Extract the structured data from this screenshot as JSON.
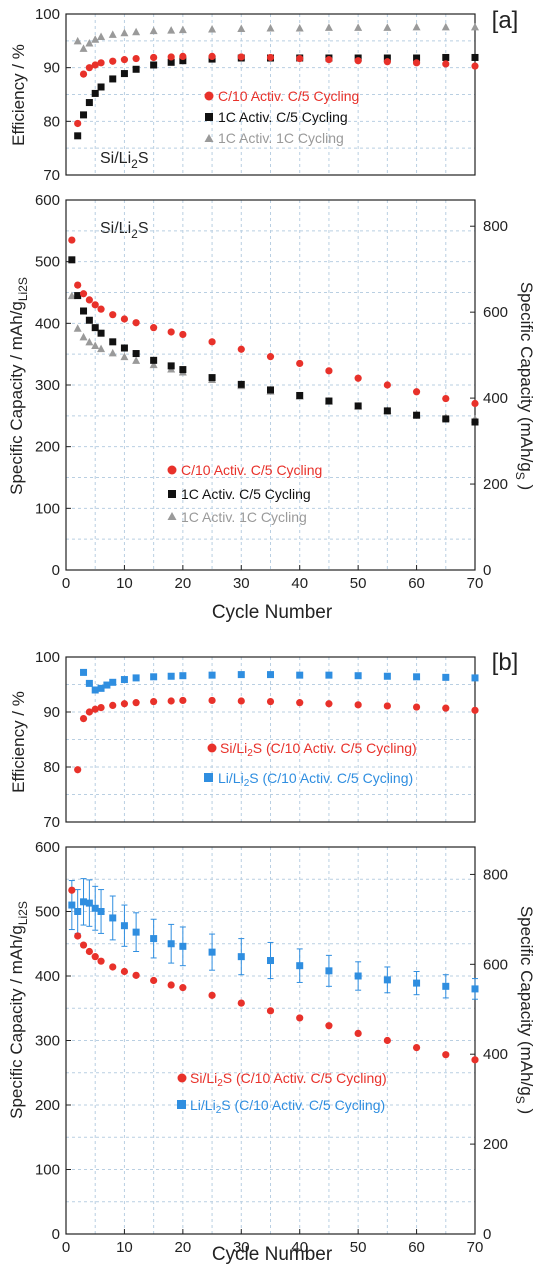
{
  "panels": [
    {
      "tag": "[a]",
      "sample": "Si/Li2S",
      "efficiency_ylabel": "Efficiency / %",
      "capacity_ylabel": "Specific Capacity / mAh/gLi2S",
      "capacity_y2label": "Specific Capacity (mAh/gS )",
      "xlabel": "Cycle Number"
    },
    {
      "tag": "[b]",
      "efficiency_ylabel": "Efficiency / %",
      "capacity_ylabel": "Specific Capacity / mAh/gLi2S",
      "capacity_y2label": "Specific Capacity (mAh/gS )",
      "xlabel": "Cycle Number"
    }
  ],
  "colors": {
    "red": "#e8312a",
    "black": "#111111",
    "gray": "#9a9a9a",
    "blue": "#2f8ee0",
    "grid": "#b9cfe2"
  },
  "chart_data": [
    {
      "id": "a-efficiency",
      "type": "scatter",
      "xlim": [
        0,
        70
      ],
      "ylim": [
        70,
        100
      ],
      "yticks": [
        70,
        80,
        90,
        100
      ],
      "grid": true,
      "legend_position": "center-right",
      "series": [
        {
          "name": "C/10 Activ. C/5 Cycling",
          "marker": "circle",
          "color": "#e8312a",
          "x": [
            2,
            3,
            4,
            5,
            6,
            8,
            10,
            12,
            15,
            18,
            20,
            25,
            30,
            35,
            40,
            45,
            50,
            55,
            60,
            65,
            70
          ],
          "y": [
            79.6,
            88.8,
            90.0,
            90.5,
            90.9,
            91.2,
            91.5,
            91.7,
            91.9,
            92.0,
            92.1,
            92.1,
            92.0,
            91.9,
            91.7,
            91.5,
            91.3,
            91.1,
            90.9,
            90.7,
            90.3
          ]
        },
        {
          "name": "1C Activ. C/5 Cycling",
          "marker": "square",
          "color": "#111111",
          "x": [
            2,
            3,
            4,
            5,
            6,
            8,
            10,
            12,
            15,
            18,
            20,
            25,
            30,
            35,
            40,
            45,
            50,
            55,
            60,
            65,
            70
          ],
          "y": [
            77.3,
            81.2,
            83.5,
            85.2,
            86.4,
            87.9,
            88.9,
            89.7,
            90.5,
            91.0,
            91.3,
            91.6,
            91.8,
            91.8,
            91.8,
            91.8,
            91.8,
            91.8,
            91.8,
            91.9,
            91.9
          ]
        },
        {
          "name": "1C Activ. 1C Cycling",
          "marker": "triangle",
          "color": "#9a9a9a",
          "x": [
            2,
            3,
            4,
            5,
            6,
            8,
            10,
            12,
            15,
            18,
            20,
            25,
            30,
            35,
            40,
            45,
            50,
            55,
            60,
            65,
            70
          ],
          "y": [
            95.0,
            93.6,
            94.6,
            95.3,
            95.8,
            96.2,
            96.5,
            96.7,
            96.9,
            97.0,
            97.1,
            97.2,
            97.3,
            97.4,
            97.4,
            97.5,
            97.5,
            97.5,
            97.6,
            97.6,
            97.6
          ]
        }
      ]
    },
    {
      "id": "a-capacity",
      "type": "scatter",
      "xlabel": "Cycle Number",
      "xlim": [
        0,
        70
      ],
      "xticks": [
        0,
        10,
        20,
        30,
        40,
        50,
        60,
        70
      ],
      "ylim": [
        0,
        600
      ],
      "yticks": [
        0,
        100,
        200,
        300,
        400,
        500,
        600
      ],
      "y2lim": [
        0,
        861
      ],
      "y2ticks": [
        0,
        200,
        400,
        600,
        800
      ],
      "grid": true,
      "legend_position": "bottom-center",
      "series": [
        {
          "name": "C/10 Activ. C/5 Cycling",
          "marker": "circle",
          "color": "#e8312a",
          "x": [
            1,
            2,
            3,
            4,
            5,
            6,
            8,
            10,
            12,
            15,
            18,
            20,
            25,
            30,
            35,
            40,
            45,
            50,
            55,
            60,
            65,
            70
          ],
          "y": [
            535,
            462,
            448,
            438,
            430,
            423,
            414,
            407,
            401,
            393,
            386,
            382,
            370,
            358,
            346,
            335,
            323,
            311,
            300,
            289,
            278,
            270
          ]
        },
        {
          "name": "1C Activ. C/5 Cycling",
          "marker": "square",
          "color": "#111111",
          "x": [
            1,
            2,
            3,
            4,
            5,
            6,
            8,
            10,
            12,
            15,
            18,
            20,
            25,
            30,
            35,
            40,
            45,
            50,
            55,
            60,
            65,
            70
          ],
          "y": [
            503,
            445,
            420,
            405,
            393,
            384,
            370,
            360,
            351,
            340,
            331,
            325,
            312,
            301,
            292,
            283,
            274,
            266,
            258,
            251,
            245,
            240
          ]
        },
        {
          "name": "1C Activ. 1C Cycling",
          "marker": "triangle",
          "color": "#9a9a9a",
          "x": [
            1,
            2,
            3,
            4,
            5,
            6,
            8,
            10,
            12,
            15,
            18,
            20,
            25,
            30,
            35,
            40,
            45,
            50,
            55,
            60,
            65,
            70
          ],
          "y": [
            445,
            392,
            378,
            370,
            364,
            359,
            352,
            346,
            340,
            333,
            326,
            321,
            309,
            299,
            290,
            282,
            274,
            266,
            259,
            253,
            248,
            245
          ]
        }
      ]
    },
    {
      "id": "b-efficiency",
      "type": "scatter",
      "xlim": [
        0,
        70
      ],
      "ylim": [
        70,
        100
      ],
      "yticks": [
        70,
        80,
        90,
        100
      ],
      "grid": true,
      "legend_position": "center-right",
      "series": [
        {
          "name": "Si/Li2S (C/10 Activ. C/5 Cycling)",
          "marker": "circle",
          "color": "#e8312a",
          "x": [
            2,
            3,
            4,
            5,
            6,
            8,
            10,
            12,
            15,
            18,
            20,
            25,
            30,
            35,
            40,
            45,
            50,
            55,
            60,
            65,
            70
          ],
          "y": [
            79.5,
            88.8,
            90.0,
            90.5,
            90.8,
            91.2,
            91.5,
            91.7,
            91.9,
            92.0,
            92.1,
            92.1,
            92.0,
            91.9,
            91.7,
            91.5,
            91.3,
            91.1,
            90.9,
            90.7,
            90.3
          ]
        },
        {
          "name": "Li/Li2S (C/10 Activ. C/5 Cycling)",
          "marker": "square",
          "color": "#2f8ee0",
          "x": [
            3,
            4,
            5,
            6,
            7,
            8,
            10,
            12,
            15,
            18,
            20,
            25,
            30,
            35,
            40,
            45,
            50,
            55,
            60,
            65,
            70
          ],
          "y": [
            97.2,
            95.2,
            94.0,
            94.3,
            94.9,
            95.4,
            95.9,
            96.2,
            96.4,
            96.5,
            96.6,
            96.7,
            96.8,
            96.8,
            96.7,
            96.7,
            96.6,
            96.5,
            96.4,
            96.3,
            96.2
          ]
        }
      ]
    },
    {
      "id": "b-capacity",
      "type": "scatter",
      "xlabel": "Cycle Number",
      "xlim": [
        0,
        70
      ],
      "xticks": [
        0,
        10,
        20,
        30,
        40,
        50,
        60,
        70
      ],
      "ylim": [
        0,
        600
      ],
      "yticks": [
        0,
        100,
        200,
        300,
        400,
        500,
        600
      ],
      "y2lim": [
        0,
        861
      ],
      "y2ticks": [
        0,
        200,
        400,
        600,
        800
      ],
      "grid": true,
      "legend_position": "bottom-center",
      "series": [
        {
          "name": "Si/Li2S (C/10 Activ. C/5 Cycling)",
          "marker": "circle",
          "color": "#e8312a",
          "x": [
            1,
            2,
            3,
            4,
            5,
            6,
            8,
            10,
            12,
            15,
            18,
            20,
            25,
            30,
            35,
            40,
            45,
            50,
            55,
            60,
            65,
            70
          ],
          "y": [
            533,
            462,
            448,
            438,
            430,
            423,
            414,
            407,
            401,
            393,
            386,
            382,
            370,
            358,
            346,
            335,
            323,
            311,
            300,
            289,
            278,
            270
          ]
        },
        {
          "name": "Li/Li2S (C/10 Activ. C/5 Cycling)",
          "marker": "square",
          "color": "#2f8ee0",
          "x": [
            1,
            2,
            3,
            4,
            5,
            6,
            8,
            10,
            12,
            15,
            18,
            20,
            25,
            30,
            35,
            40,
            45,
            50,
            55,
            60,
            65,
            70
          ],
          "y": [
            510,
            500,
            515,
            513,
            505,
            500,
            490,
            478,
            468,
            458,
            450,
            446,
            437,
            430,
            424,
            416,
            408,
            400,
            394,
            389,
            384,
            380
          ],
          "err": [
            38,
            34,
            36,
            36,
            34,
            34,
            34,
            32,
            30,
            30,
            30,
            30,
            28,
            28,
            28,
            26,
            24,
            22,
            20,
            18,
            18,
            16
          ]
        }
      ]
    }
  ]
}
